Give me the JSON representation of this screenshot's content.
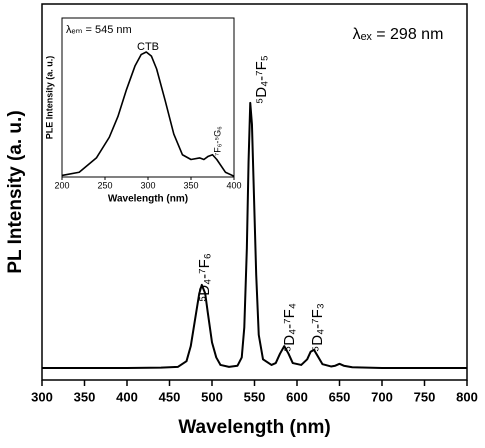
{
  "chart_data": [
    {
      "type": "line",
      "x_label": "Wavelength (nm)",
      "y_label": "PL Intensity (a. u.)",
      "annotations": [
        "λₑₓ = 298 nm",
        "⁵D₄-⁷F₆",
        "⁵D₄-⁷F₅",
        "⁵D₄-⁷F₄",
        "⁵D₄-⁷F₃"
      ],
      "xlim": [
        300,
        800
      ],
      "xticks": [
        300,
        350,
        400,
        450,
        500,
        550,
        600,
        650,
        700,
        750,
        800
      ],
      "ylim": [
        0,
        100
      ],
      "color": "#000000",
      "x": [
        300,
        350,
        400,
        440,
        460,
        470,
        475,
        480,
        485,
        488,
        492,
        495,
        500,
        505,
        510,
        520,
        530,
        535,
        538,
        541,
        543,
        545,
        547,
        549,
        552,
        555,
        560,
        570,
        575,
        580,
        585,
        590,
        595,
        605,
        612,
        616,
        620,
        624,
        630,
        640,
        645,
        650,
        655,
        665,
        700,
        750,
        800
      ],
      "values": [
        3.2,
        3.2,
        3.2,
        3.3,
        3.5,
        5,
        9,
        16,
        23,
        25.3,
        23,
        18,
        10,
        6,
        4,
        3.5,
        3.8,
        6,
        14,
        35,
        58,
        73.7,
        68,
        52,
        28,
        12,
        5.5,
        4,
        4.5,
        7,
        9,
        7,
        4.5,
        4,
        5.5,
        7.5,
        8,
        6.5,
        4.2,
        3.6,
        3.8,
        4.3,
        3.8,
        3.4,
        3.2,
        3.2,
        3.2
      ]
    },
    {
      "type": "line",
      "x_label": "Wavelength (nm)",
      "y_label": "PLE Intensity (a. u.)",
      "annotations": [
        "λₑₘ = 545 nm",
        "CTB",
        "⁷F₆-⁵G₆"
      ],
      "xlim": [
        200,
        400
      ],
      "xticks": [
        200,
        250,
        300,
        350,
        400
      ],
      "ylim": [
        0,
        100
      ],
      "color": "#000000",
      "x": [
        200,
        220,
        240,
        255,
        265,
        275,
        285,
        292,
        298,
        304,
        310,
        320,
        330,
        340,
        350,
        360,
        365,
        370,
        375,
        380,
        390,
        400
      ],
      "values": [
        1,
        3,
        12,
        25,
        38,
        55,
        70,
        77,
        78.6,
        76,
        68,
        48,
        27,
        14,
        11,
        12,
        11,
        13,
        14,
        11,
        3,
        0.5
      ]
    }
  ]
}
